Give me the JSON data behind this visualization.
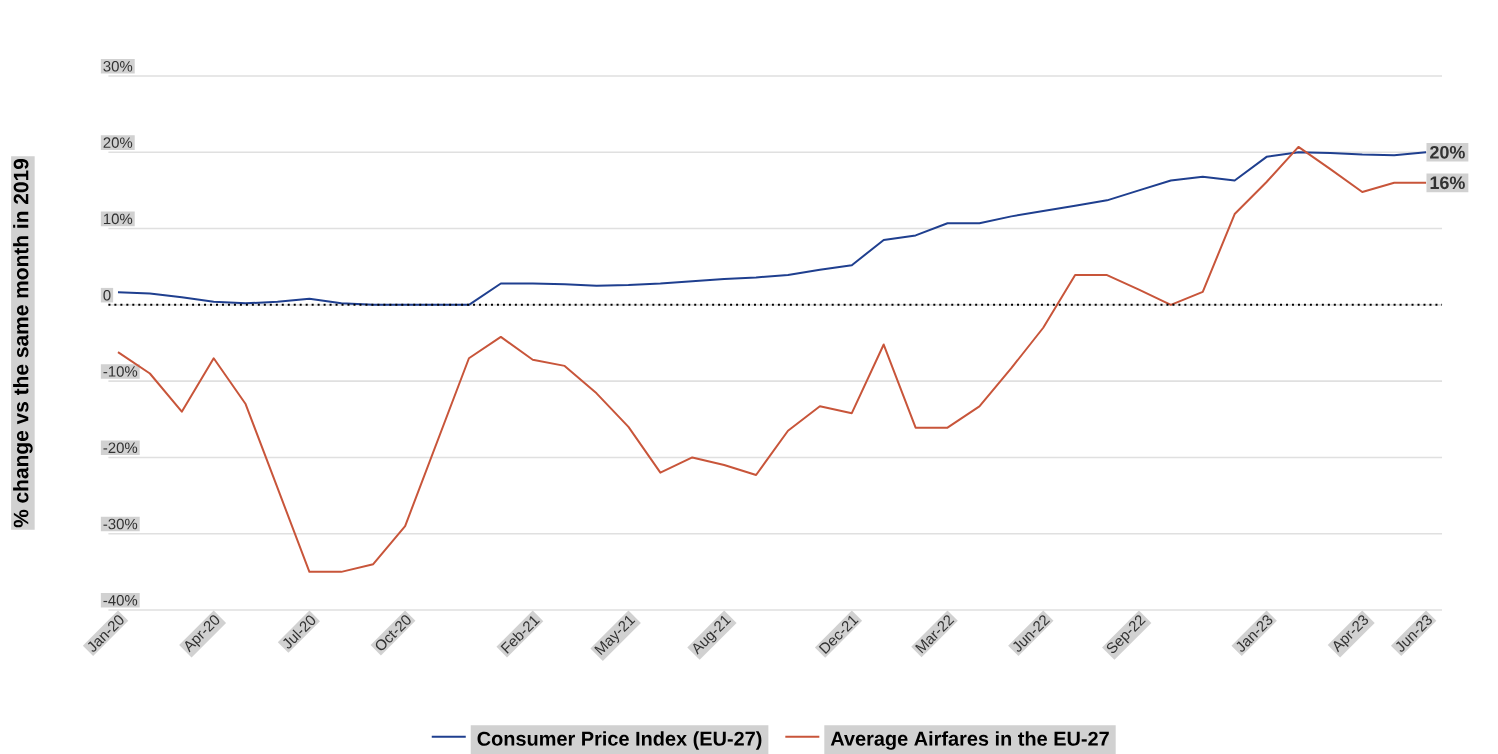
{
  "chart_data": {
    "type": "line",
    "ylabel": "% change vs the same month in 2019",
    "categories": [
      "Jan-20",
      null,
      null,
      "Apr-20",
      null,
      null,
      "Jul-20",
      null,
      null,
      "Oct-20",
      null,
      null,
      null,
      "Feb-21",
      null,
      null,
      "May-21",
      null,
      null,
      "Aug-21",
      null,
      null,
      null,
      "Dec-21",
      null,
      null,
      "Mar-22",
      null,
      null,
      "Jun-22",
      null,
      null,
      "Sep-22",
      null,
      null,
      null,
      "Jan-23",
      null,
      null,
      "Apr-23",
      null,
      "Jun-23"
    ],
    "series": [
      {
        "name": "Consumer Price Index (EU-27)",
        "color": "#1f3f8f",
        "values": [
          1.65,
          1.5,
          1,
          0.4,
          0.2,
          0.4,
          0.8,
          0.2,
          0,
          0,
          0,
          0,
          2.8,
          2.8,
          2.7,
          2.5,
          2.6,
          2.8,
          3.1,
          3.4,
          3.6,
          3.9,
          4.6,
          5.2,
          8.5,
          9.1,
          10.7,
          10.7,
          11.6,
          12.3,
          13,
          13.7,
          15,
          16.3,
          16.8,
          16.3,
          19.4,
          20,
          19.9,
          19.7,
          19.6,
          20
        ],
        "value_labels": [
          null,
          null,
          null,
          null,
          null,
          null,
          null,
          null,
          null,
          null,
          null,
          null,
          null,
          null,
          null,
          null,
          null,
          null,
          null,
          null,
          null,
          null,
          null,
          null,
          null,
          null,
          null,
          null,
          null,
          null,
          null,
          null,
          null,
          null,
          null,
          null,
          null,
          null,
          null,
          null,
          null,
          "20%"
        ]
      },
      {
        "name": "Average Airfares in the EU-27",
        "color": "#c8553a",
        "values": [
          -6.2,
          -9,
          -14,
          -7,
          -13,
          -24,
          -35,
          -35,
          -34,
          -29,
          -18,
          -7,
          -4.2,
          -7.2,
          -8,
          -11.6,
          -16,
          -22,
          -20,
          -21,
          -22.3,
          -16.5,
          -13.3,
          -14.2,
          -5.2,
          -16.1,
          -16.1,
          -13.3,
          -8.3,
          -3,
          3.9,
          3.9,
          2,
          0,
          1.7,
          11.9,
          16.1,
          20.7,
          17.8,
          14.8,
          16,
          16
        ],
        "value_labels": [
          null,
          null,
          null,
          null,
          null,
          null,
          null,
          null,
          null,
          null,
          null,
          null,
          null,
          null,
          null,
          null,
          null,
          null,
          null,
          null,
          null,
          null,
          null,
          null,
          null,
          null,
          null,
          null,
          null,
          null,
          null,
          null,
          null,
          null,
          null,
          null,
          null,
          null,
          null,
          null,
          null,
          "16%"
        ]
      }
    ],
    "ylim": [
      -40,
      30
    ],
    "yticks": [
      {
        "value": -40,
        "label": "-40%"
      },
      {
        "value": -30,
        "label": "-30%"
      },
      {
        "value": -20,
        "label": "-20%"
      },
      {
        "value": -10,
        "label": "-10%"
      },
      {
        "value": 0,
        "label": "0"
      },
      {
        "value": 10,
        "label": "10%"
      },
      {
        "value": 20,
        "label": "20%"
      },
      {
        "value": 30,
        "label": "30%"
      }
    ],
    "ref_lines": [
      {
        "axis": "y",
        "value": 0,
        "color": "#000000",
        "line_style": "dotted"
      }
    ],
    "grid": "y",
    "legend": "bottom",
    "marker": "none",
    "line_style": "solid"
  }
}
